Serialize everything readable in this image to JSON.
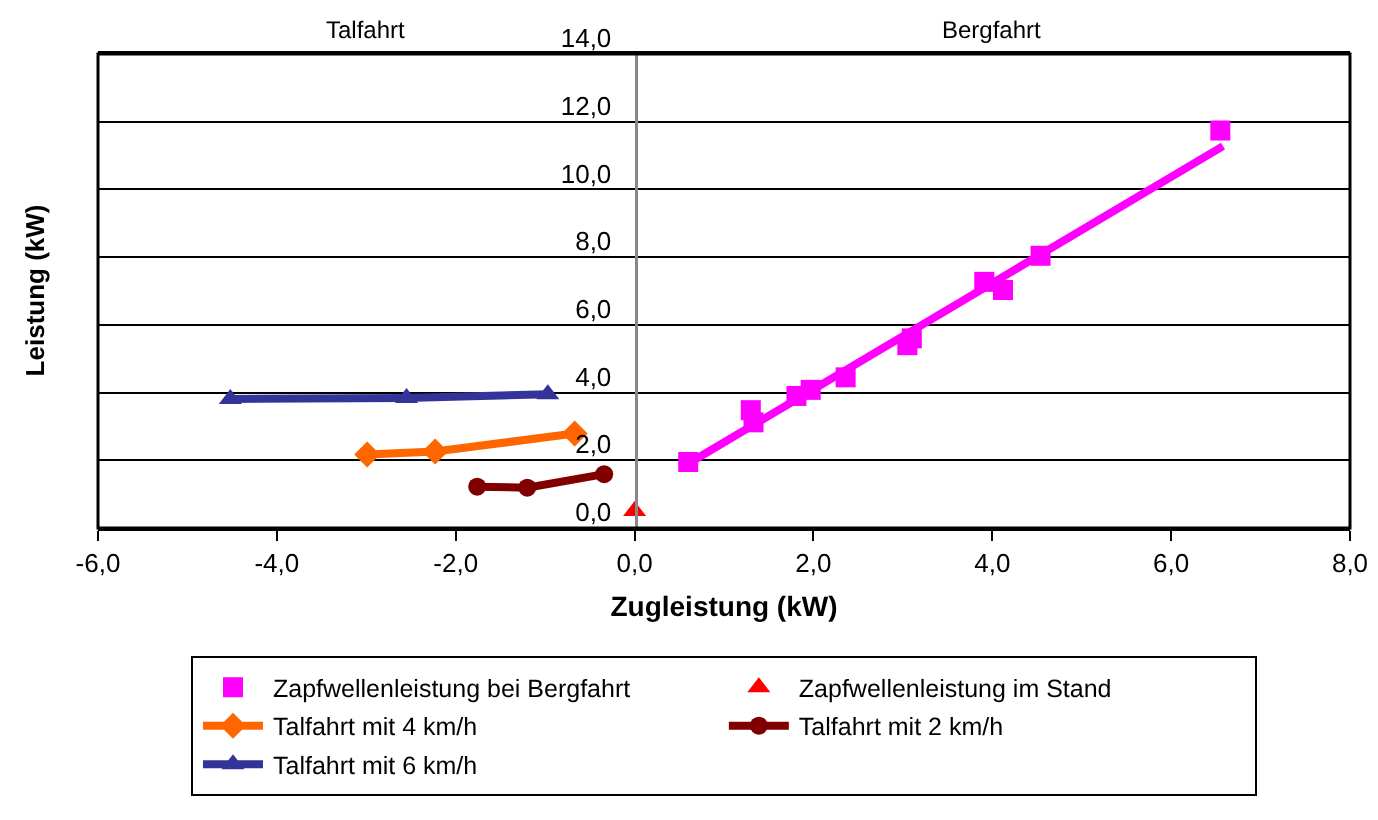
{
  "chart_data": {
    "type": "line",
    "xlabel": "Zugleistung (kW)",
    "ylabel": "Leistung (kW)",
    "xlim": [
      -6,
      8
    ],
    "xticks": [
      {
        "value": -6,
        "label": "-6,0"
      },
      {
        "value": -4,
        "label": "-4,0"
      },
      {
        "value": -2,
        "label": "-2,0"
      },
      {
        "value": 0,
        "label": "0,0"
      },
      {
        "value": 2,
        "label": "2,0"
      },
      {
        "value": 4,
        "label": "4,0"
      },
      {
        "value": 6,
        "label": "6,0"
      },
      {
        "value": 8,
        "label": "8,0"
      }
    ],
    "ylim": [
      0,
      14
    ],
    "yticks": [
      {
        "value": 0,
        "label": "0,0"
      },
      {
        "value": 2,
        "label": "2,0"
      },
      {
        "value": 4,
        "label": "4,0"
      },
      {
        "value": 6,
        "label": "6,0"
      },
      {
        "value": 8,
        "label": "8,0"
      },
      {
        "value": 10,
        "label": "10,0"
      },
      {
        "value": 12,
        "label": "12,0"
      },
      {
        "value": 14,
        "label": "14,0"
      }
    ],
    "grid": "y",
    "legend": "bottom",
    "annotations": [
      "Talfahrt",
      "Bergfahrt"
    ],
    "series": [
      {
        "name": "Zapfwellenleistung bei Bergfahrt",
        "type": "scatter",
        "marker": "square",
        "color": "#ff00ff",
        "x": [
          0.6,
          1.3,
          1.33,
          1.81,
          1.97,
          2.36,
          3.05,
          3.1,
          3.91,
          4.12,
          4.54,
          6.55
        ],
        "values": [
          1.95,
          3.48,
          3.12,
          3.9,
          4.08,
          4.45,
          5.4,
          5.6,
          7.27,
          7.03,
          8.04,
          11.74
        ]
      },
      {
        "name": "Zapfwellenleistung im Stand",
        "type": "scatter",
        "marker": "triangle",
        "color": "#ff0000",
        "x": [
          0.0
        ],
        "values": [
          0.5
        ]
      },
      {
        "name": "Talfahrt mit 4 km/h",
        "type": "line",
        "marker": "diamond",
        "color": "#ff6600",
        "x": [
          -2.99,
          -2.23,
          -0.67
        ],
        "values": [
          2.17,
          2.26,
          2.79
        ]
      },
      {
        "name": "Talfahrt mit 2 km/h",
        "type": "line",
        "marker": "circle",
        "color": "#800000",
        "x": [
          -1.76,
          -1.2,
          -0.34
        ],
        "values": [
          1.22,
          1.19,
          1.59
        ]
      },
      {
        "name": "Talfahrt mit 6 km/h",
        "type": "line",
        "marker": "triangle",
        "color": "#333399",
        "x": [
          -4.52,
          -2.55,
          -0.97
        ],
        "values": [
          3.81,
          3.84,
          3.95
        ]
      },
      {
        "marker": "none",
        "color": "#ff00ff",
        "x": [
          0.63,
          6.58
        ],
        "values": [
          1.95,
          11.28
        ]
      }
    ]
  }
}
